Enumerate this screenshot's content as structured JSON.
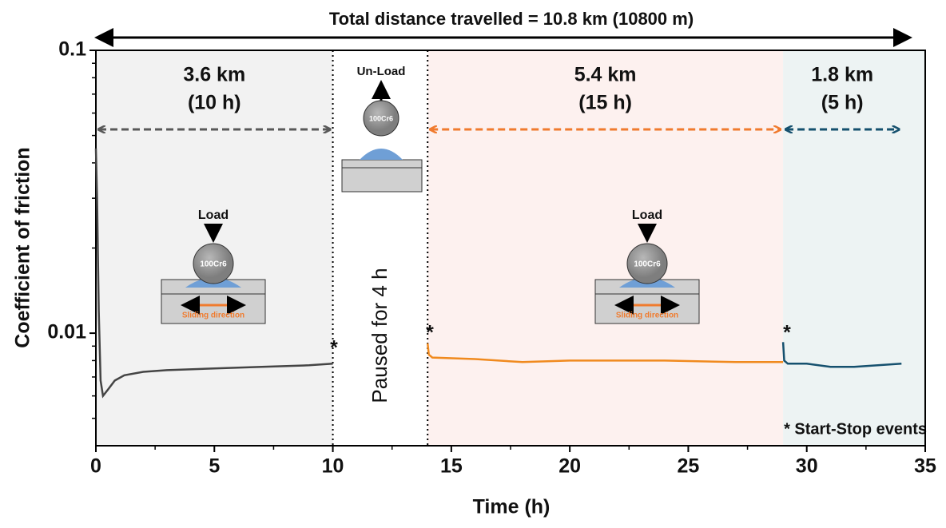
{
  "chart_data": {
    "type": "line",
    "title": "Total distance travelled = 10.8 km (10800 m)",
    "x_label": "Time (h)",
    "y_label": "Coefficient of friction",
    "log_y": true,
    "grid": false,
    "xlim": [
      0,
      35
    ],
    "xticks": [
      0,
      5,
      10,
      15,
      20,
      25,
      30,
      35
    ],
    "ylim": [
      0.004,
      0.1
    ],
    "yticks": [
      0.01,
      0.1
    ],
    "series": [
      {
        "color": "#444444",
        "x": [
          0,
          0.05,
          0.12,
          0.2,
          0.3,
          0.5,
          0.8,
          1.2,
          2,
          3,
          5,
          7,
          9,
          10
        ],
        "values": [
          0.045,
          0.03,
          0.012,
          0.0068,
          0.006,
          0.0063,
          0.0068,
          0.0071,
          0.0073,
          0.0074,
          0.0075,
          0.0076,
          0.0077,
          0.0078
        ]
      },
      {
        "color": "#f08a1e",
        "x": [
          14,
          14.05,
          14.2,
          16,
          18,
          20,
          24,
          27,
          29
        ],
        "values": [
          0.0092,
          0.0084,
          0.0082,
          0.0081,
          0.0079,
          0.008,
          0.008,
          0.0079,
          0.0079
        ]
      },
      {
        "color": "#15506e",
        "x": [
          29,
          29.05,
          29.2,
          30,
          31,
          32,
          33,
          34
        ],
        "values": [
          0.0093,
          0.008,
          0.0078,
          0.0078,
          0.0076,
          0.0076,
          0.0077,
          0.0078
        ]
      }
    ],
    "regions": [
      {
        "span": [
          0,
          10
        ],
        "fill": "#f2f2f2",
        "arrow_color": "#595959",
        "distance": "3.6 km",
        "duration": "(10 h)"
      },
      {
        "span": [
          14,
          29
        ],
        "fill": "#fdf1ef",
        "arrow_color": "#f07b2e",
        "distance": "5.4 km",
        "duration": "(15 h)"
      },
      {
        "span": [
          29,
          34
        ],
        "fill": "#edf3f3",
        "arrow_color": "#15506e",
        "distance": "1.8 km",
        "duration": "(5 h)"
      }
    ],
    "vlines": [
      10,
      14
    ],
    "annotations": {
      "pause": "Paused for 4 h",
      "load": "Load",
      "unload": "Un-Load",
      "ball": "100Cr6",
      "sliding": "Sliding direction",
      "marker": "*",
      "legend": "* Start-Stop events"
    }
  }
}
